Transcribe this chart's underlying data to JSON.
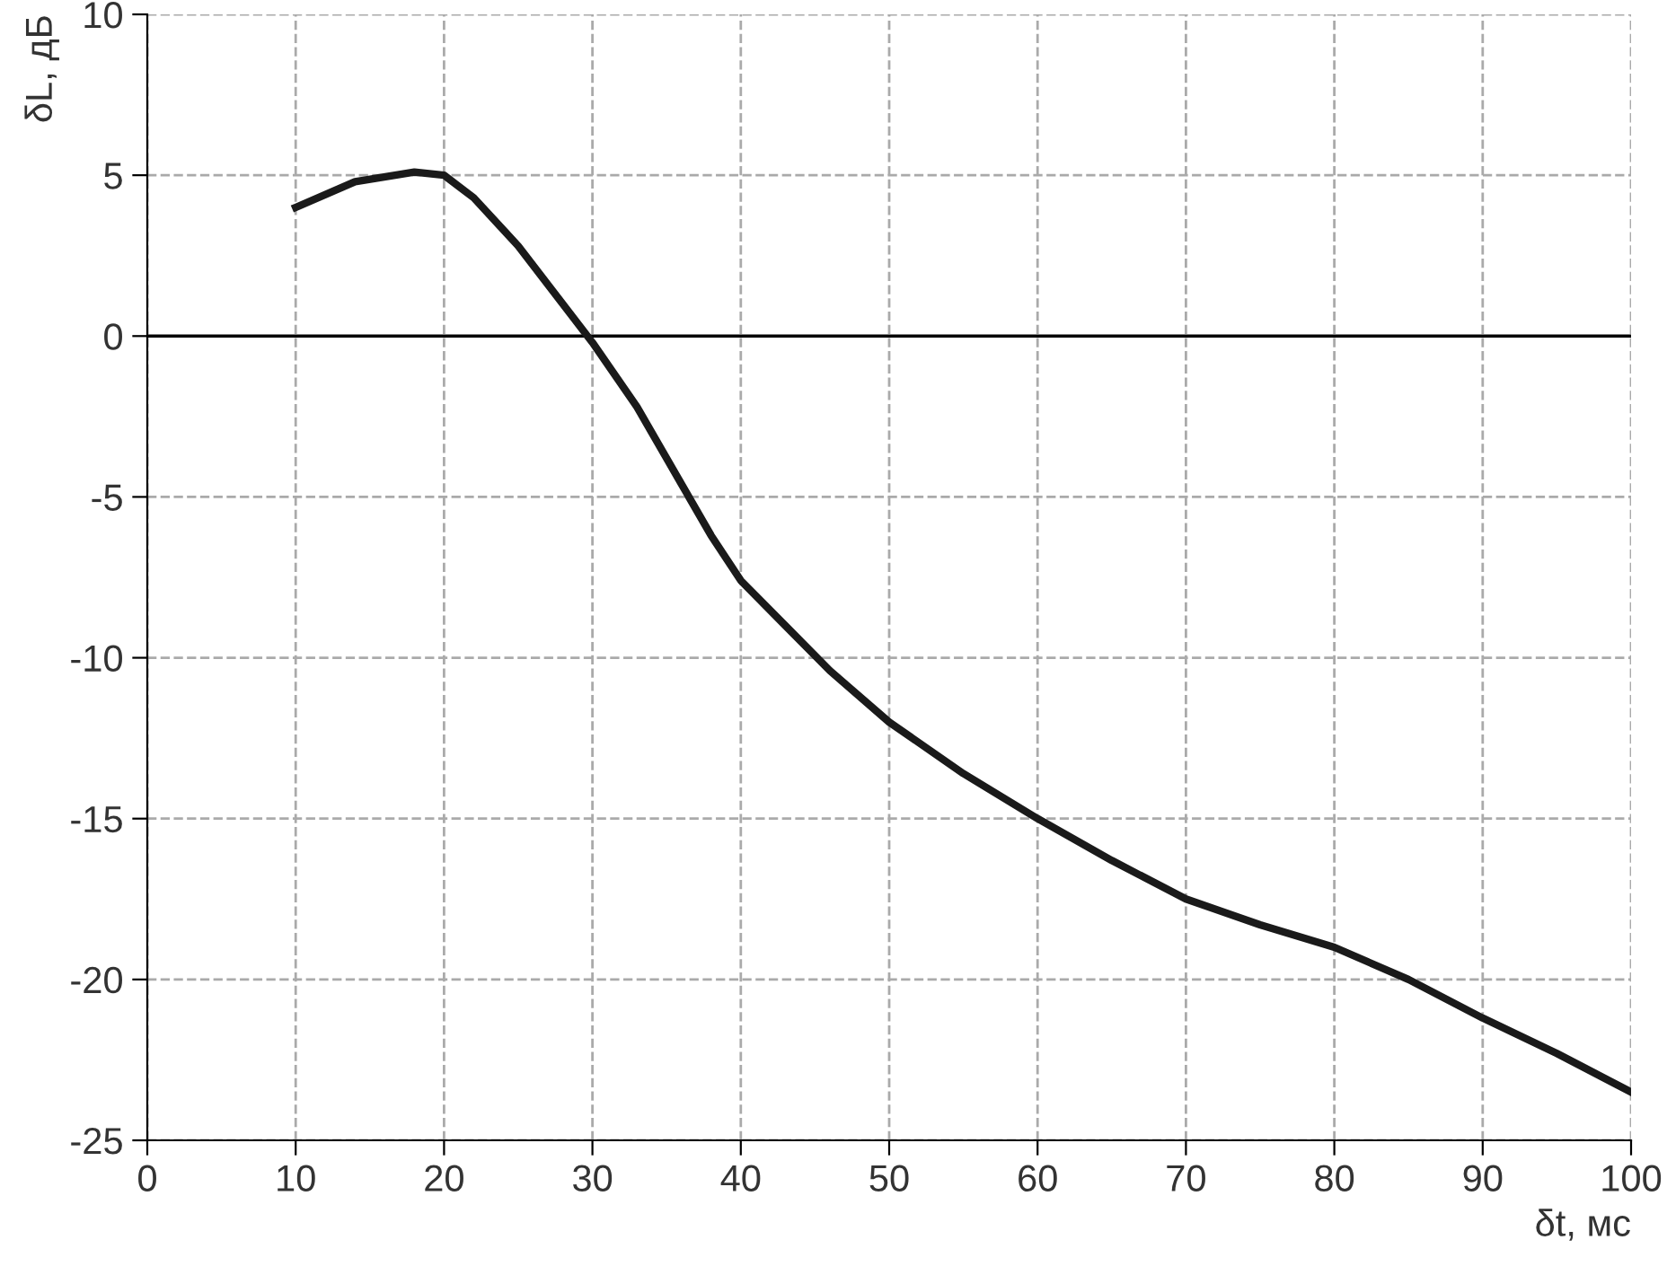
{
  "chart_data": {
    "type": "line",
    "xlabel": "δt, мс",
    "ylabel": "δL, дБ",
    "x": [
      10,
      14,
      18,
      20,
      22,
      25,
      28,
      30,
      33,
      36,
      38,
      40,
      43,
      46,
      50,
      55,
      60,
      65,
      70,
      75,
      80,
      85,
      90,
      95,
      100
    ],
    "series": [
      {
        "color": "#1a1a1a",
        "values": [
          4.0,
          4.8,
          5.1,
          5.0,
          4.3,
          2.8,
          1.0,
          -0.2,
          -2.2,
          -4.6,
          -6.2,
          -7.6,
          -9.0,
          -10.4,
          -12.0,
          -13.6,
          -15.0,
          -16.3,
          -17.5,
          -18.3,
          -19.0,
          -20.0,
          -21.2,
          -22.3,
          -23.5
        ]
      }
    ],
    "xlim": [
      0,
      100
    ],
    "xticks": [
      0,
      10,
      20,
      30,
      40,
      50,
      60,
      70,
      80,
      90,
      100
    ],
    "ylim": [
      -25,
      10
    ],
    "yticks": [
      -25,
      -20,
      -15,
      -10,
      -5,
      0,
      5,
      10
    ],
    "ref_lines": [
      {
        "axis": "y",
        "value": 0,
        "color": "#000000",
        "line_style": "solid"
      }
    ],
    "grid": true,
    "legend": false,
    "marker": "none",
    "line_style": "solid"
  }
}
